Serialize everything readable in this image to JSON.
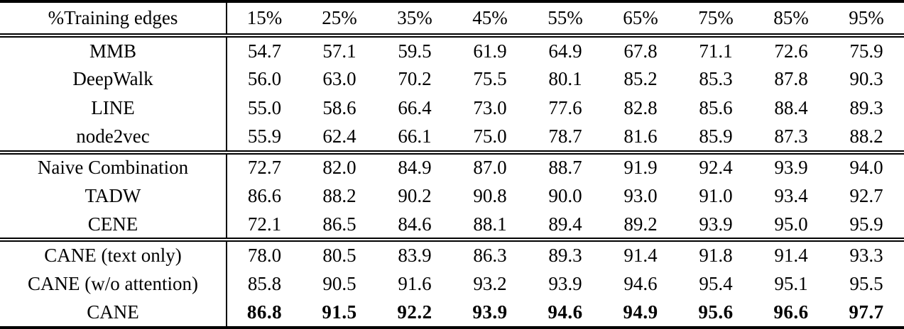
{
  "table": {
    "header": {
      "label": "%Training edges",
      "columns": [
        "15%",
        "25%",
        "35%",
        "45%",
        "55%",
        "65%",
        "75%",
        "85%",
        "95%"
      ]
    },
    "groups": [
      {
        "name": "structure-only-baselines",
        "rows": [
          {
            "label": "MMB",
            "bold": false,
            "values": [
              "54.7",
              "57.1",
              "59.5",
              "61.9",
              "64.9",
              "67.8",
              "71.1",
              "72.6",
              "75.9"
            ]
          },
          {
            "label": "DeepWalk",
            "bold": false,
            "values": [
              "56.0",
              "63.0",
              "70.2",
              "75.5",
              "80.1",
              "85.2",
              "85.3",
              "87.8",
              "90.3"
            ]
          },
          {
            "label": "LINE",
            "bold": false,
            "values": [
              "55.0",
              "58.6",
              "66.4",
              "73.0",
              "77.6",
              "82.8",
              "85.6",
              "88.4",
              "89.3"
            ]
          },
          {
            "label": "node2vec",
            "bold": false,
            "values": [
              "55.9",
              "62.4",
              "66.1",
              "75.0",
              "78.7",
              "81.6",
              "85.9",
              "87.3",
              "88.2"
            ]
          }
        ]
      },
      {
        "name": "text-aware-baselines",
        "rows": [
          {
            "label": "Naive Combination",
            "bold": false,
            "values": [
              "72.7",
              "82.0",
              "84.9",
              "87.0",
              "88.7",
              "91.9",
              "92.4",
              "93.9",
              "94.0"
            ]
          },
          {
            "label": "TADW",
            "bold": false,
            "values": [
              "86.6",
              "88.2",
              "90.2",
              "90.8",
              "90.0",
              "93.0",
              "91.0",
              "93.4",
              "92.7"
            ]
          },
          {
            "label": "CENE",
            "bold": false,
            "values": [
              "72.1",
              "86.5",
              "84.6",
              "88.1",
              "89.4",
              "89.2",
              "93.9",
              "95.0",
              "95.9"
            ]
          }
        ]
      },
      {
        "name": "cane-variants",
        "rows": [
          {
            "label": "CANE (text only)",
            "bold": false,
            "values": [
              "78.0",
              "80.5",
              "83.9",
              "86.3",
              "89.3",
              "91.4",
              "91.8",
              "91.4",
              "93.3"
            ]
          },
          {
            "label": "CANE (w/o attention)",
            "bold": false,
            "values": [
              "85.8",
              "90.5",
              "91.6",
              "93.2",
              "93.9",
              "94.6",
              "95.4",
              "95.1",
              "95.5"
            ]
          },
          {
            "label": "CANE",
            "bold": true,
            "values": [
              "86.8",
              "91.5",
              "92.2",
              "93.9",
              "94.6",
              "94.9",
              "95.6",
              "96.6",
              "97.7"
            ]
          }
        ]
      }
    ],
    "colors": {
      "text": "#000000",
      "background": "#ffffff",
      "rule": "#000000"
    }
  },
  "chart_data": {
    "type": "table",
    "title": "",
    "columns": [
      "%Training edges",
      "15%",
      "25%",
      "35%",
      "45%",
      "55%",
      "65%",
      "75%",
      "85%",
      "95%"
    ],
    "rows": [
      [
        "MMB",
        54.7,
        57.1,
        59.5,
        61.9,
        64.9,
        67.8,
        71.1,
        72.6,
        75.9
      ],
      [
        "DeepWalk",
        56.0,
        63.0,
        70.2,
        75.5,
        80.1,
        85.2,
        85.3,
        87.8,
        90.3
      ],
      [
        "LINE",
        55.0,
        58.6,
        66.4,
        73.0,
        77.6,
        82.8,
        85.6,
        88.4,
        89.3
      ],
      [
        "node2vec",
        55.9,
        62.4,
        66.1,
        75.0,
        78.7,
        81.6,
        85.9,
        87.3,
        88.2
      ],
      [
        "Naive Combination",
        72.7,
        82.0,
        84.9,
        87.0,
        88.7,
        91.9,
        92.4,
        93.9,
        94.0
      ],
      [
        "TADW",
        86.6,
        88.2,
        90.2,
        90.8,
        90.0,
        93.0,
        91.0,
        93.4,
        92.7
      ],
      [
        "CENE",
        72.1,
        86.5,
        84.6,
        88.1,
        89.4,
        89.2,
        93.9,
        95.0,
        95.9
      ],
      [
        "CANE (text only)",
        78.0,
        80.5,
        83.9,
        86.3,
        89.3,
        91.4,
        91.8,
        91.4,
        93.3
      ],
      [
        "CANE (w/o attention)",
        85.8,
        90.5,
        91.6,
        93.2,
        93.9,
        94.6,
        95.4,
        95.1,
        95.5
      ],
      [
        "CANE",
        86.8,
        91.5,
        92.2,
        93.9,
        94.6,
        94.9,
        95.6,
        96.6,
        97.7
      ]
    ],
    "bold_rows": [
      "CANE"
    ]
  }
}
